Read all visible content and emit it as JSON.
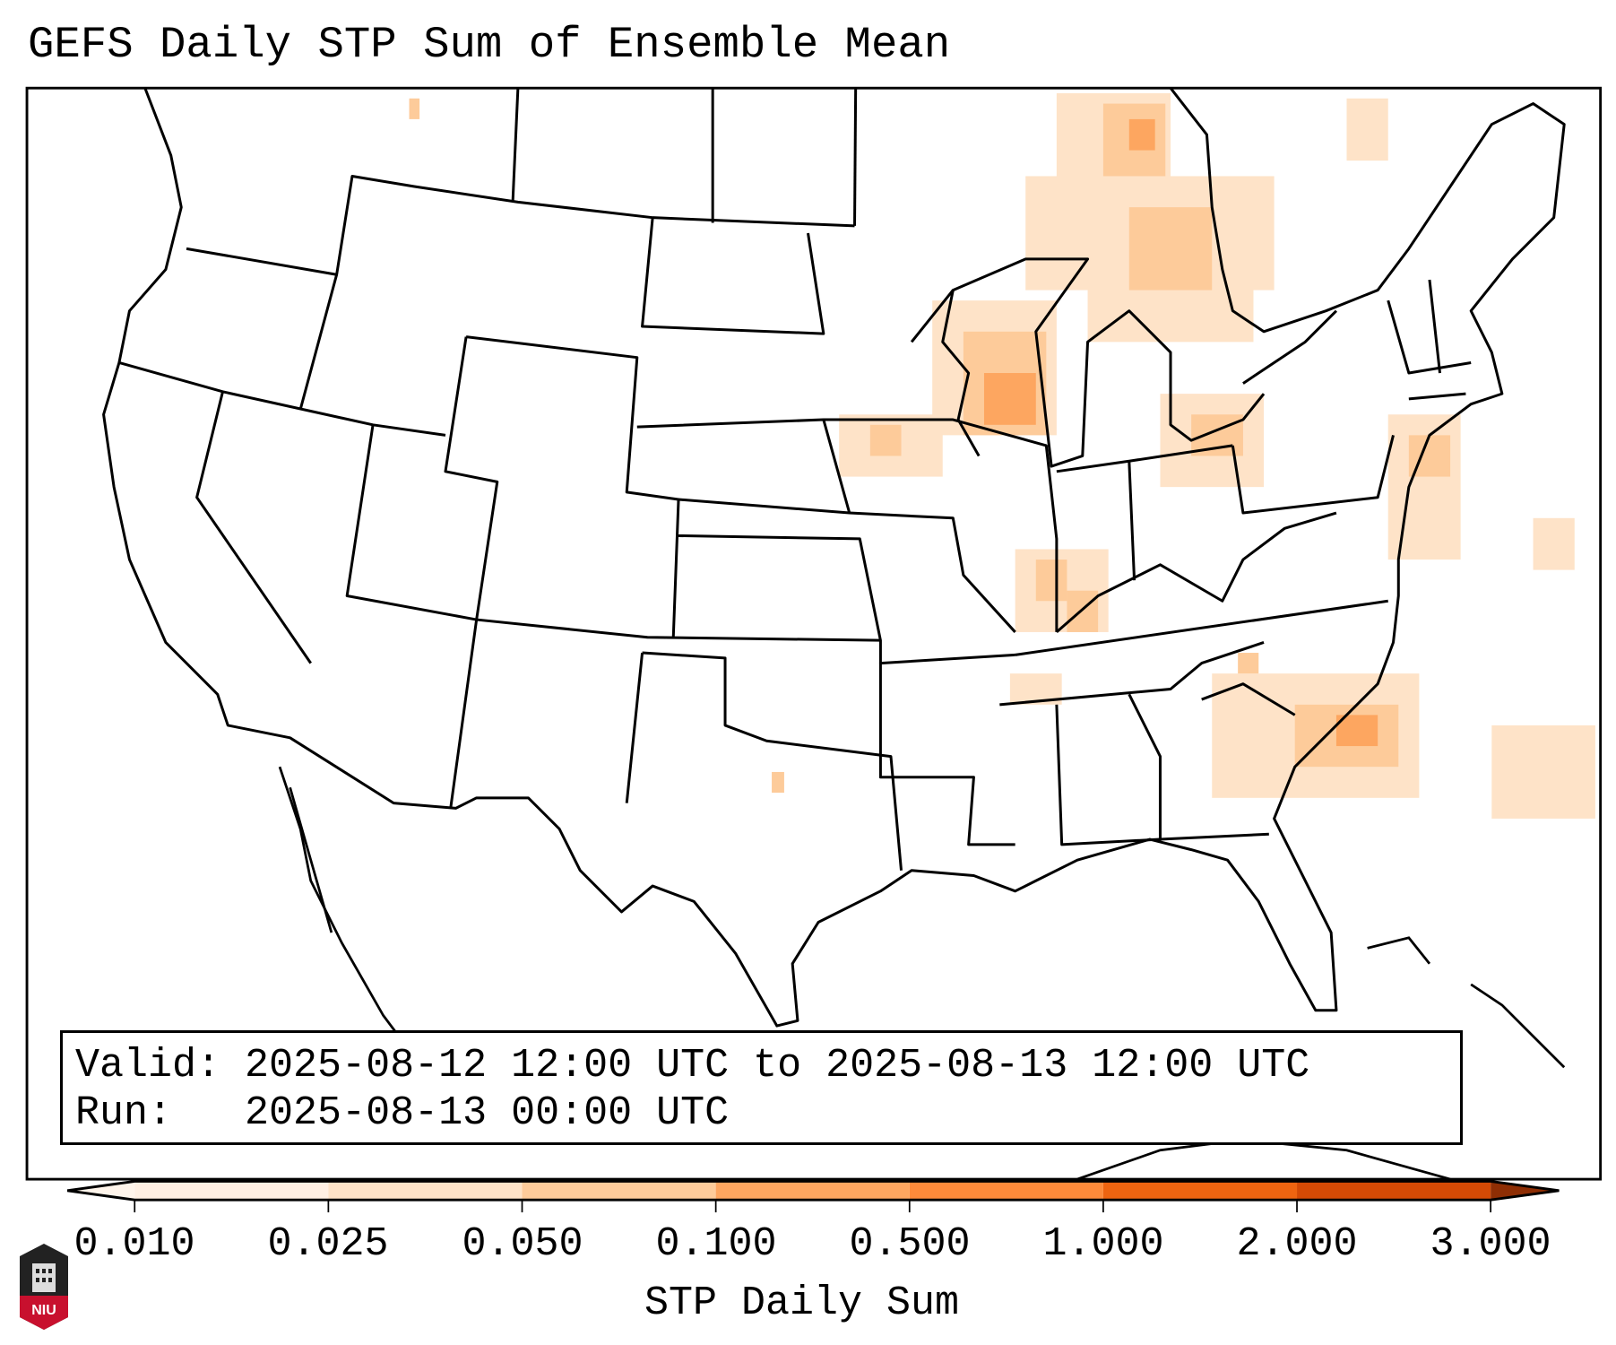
{
  "title": "GEFS Daily STP Sum of Ensemble Mean",
  "info": {
    "valid_label": "Valid:",
    "valid_value": "2025-08-12 12:00 UTC to 2025-08-13 12:00 UTC",
    "run_label": "Run:",
    "run_value": "2025-08-13 00:00 UTC"
  },
  "colorbar": {
    "label": "STP Daily Sum",
    "ticks": [
      "0.010",
      "0.025",
      "0.050",
      "0.100",
      "0.500",
      "1.000",
      "2.000",
      "3.000"
    ],
    "colors": [
      "#fff0e3",
      "#fee3c8",
      "#fdcb9a",
      "#fda660",
      "#fd8a3a",
      "#ee6410",
      "#d44a05",
      "#8e2e04"
    ],
    "extend": "both"
  },
  "logo": {
    "text": "NIU"
  }
}
